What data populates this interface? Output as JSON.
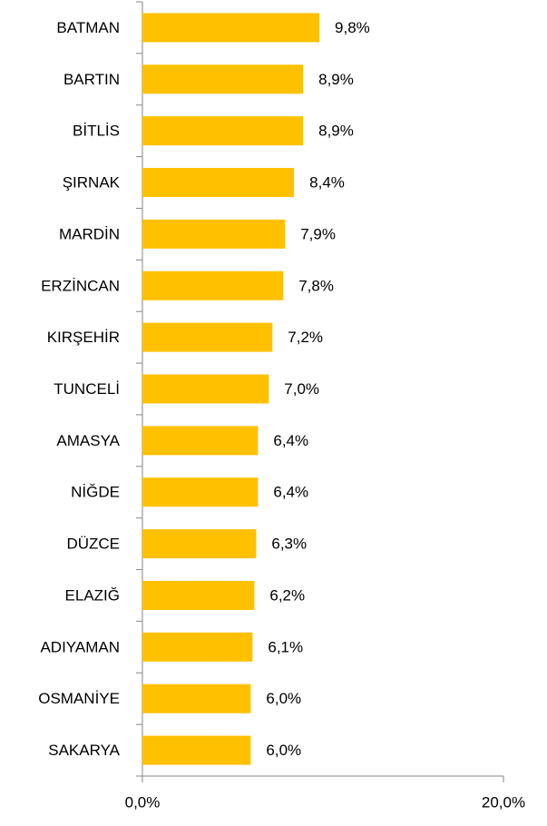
{
  "chart_data": {
    "type": "bar",
    "orientation": "horizontal",
    "categories": [
      "BATMAN",
      "BARTIN",
      "BİTLİS",
      "ŞIRNAK",
      "MARDİN",
      "ERZİNCAN",
      "KIRŞEHİR",
      "TUNCELİ",
      "AMASYA",
      "NİĞDE",
      "DÜZCE",
      "ELAZIĞ",
      "ADIYAMAN",
      "OSMANİYE",
      "SAKARYA"
    ],
    "values": [
      9.8,
      8.9,
      8.9,
      8.4,
      7.9,
      7.8,
      7.2,
      7.0,
      6.4,
      6.4,
      6.3,
      6.2,
      6.1,
      6.0,
      6.0
    ],
    "value_labels": [
      "9,8%",
      "8,9%",
      "8,9%",
      "8,4%",
      "7,9%",
      "7,8%",
      "7,2%",
      "7,0%",
      "6,4%",
      "6,4%",
      "6,3%",
      "6,2%",
      "6,1%",
      "6,0%",
      "6,0%"
    ],
    "color": "#ffc000",
    "xlim": [
      0,
      20
    ],
    "xticks": [
      {
        "value": 0,
        "label": "0,0%"
      },
      {
        "value": 20,
        "label": "20,0%"
      }
    ]
  }
}
